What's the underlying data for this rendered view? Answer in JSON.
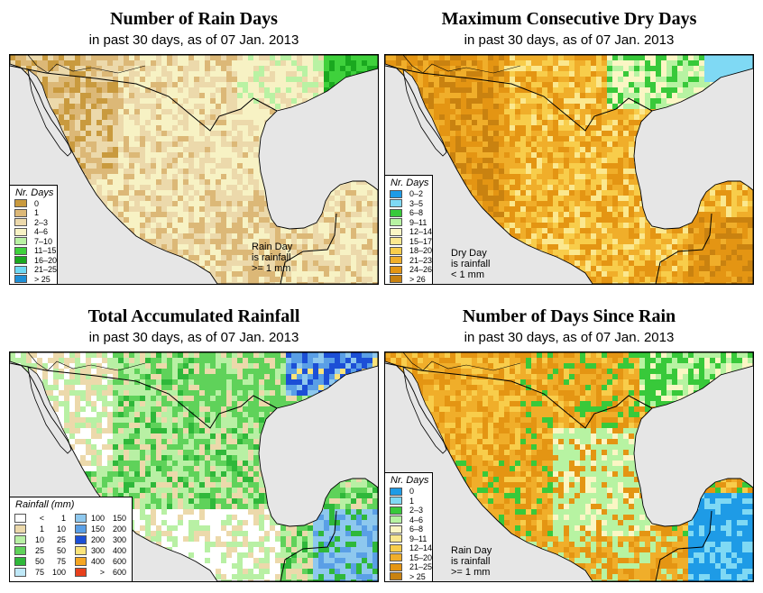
{
  "subtitle": "in past 30 days, as of  07 Jan. 2013",
  "panels": [
    {
      "title": "Number of Rain Days",
      "legend_title": "Nr. Days",
      "legend": [
        {
          "label": "0",
          "color": "#c99a3e"
        },
        {
          "label": "1",
          "color": "#dcb877"
        },
        {
          "label": "2–3",
          "color": "#ecd9ab"
        },
        {
          "label": "4–6",
          "color": "#f7f2c4"
        },
        {
          "label": "7–10",
          "color": "#b9f2a3"
        },
        {
          "label": "11–15",
          "color": "#3fd13c"
        },
        {
          "label": "16–20",
          "color": "#1aa81f"
        },
        {
          "label": "21–25",
          "color": "#6fd9f4"
        },
        {
          "label": "> 25",
          "color": "#1e8fd6"
        }
      ],
      "note": [
        "Rain Day",
        "is rainfall",
        ">= 1 mm"
      ]
    },
    {
      "title": "Maximum Consecutive Dry Days",
      "legend_title": "Nr. Days",
      "legend": [
        {
          "label": "0–2",
          "color": "#1e9be6"
        },
        {
          "label": "3–5",
          "color": "#7fd9f4"
        },
        {
          "label": "6–8",
          "color": "#38c93a"
        },
        {
          "label": "9–11",
          "color": "#b7f3a2"
        },
        {
          "label": "12–14",
          "color": "#fbf6c4"
        },
        {
          "label": "15–17",
          "color": "#fbe88f"
        },
        {
          "label": "18–20",
          "color": "#f8cd4b"
        },
        {
          "label": "21–23",
          "color": "#f0ae2a"
        },
        {
          "label": "24–26",
          "color": "#e49513"
        },
        {
          "label": "> 26",
          "color": "#c98210"
        }
      ],
      "note": [
        "Dry Day",
        "is rainfall",
        "< 1 mm"
      ]
    },
    {
      "title": "Total Accumulated Rainfall",
      "legend_title": "Rainfall (mm)",
      "rain_legend": [
        {
          "lo": "<",
          "hi": "1",
          "color": "#ffffff"
        },
        {
          "lo": "100",
          "hi": "150",
          "color": "#8ec8ee"
        },
        {
          "lo": "1",
          "hi": "10",
          "color": "#ecd9ab"
        },
        {
          "lo": "150",
          "hi": "200",
          "color": "#5a9fe6"
        },
        {
          "lo": "10",
          "hi": "25",
          "color": "#b8f0a4"
        },
        {
          "lo": "200",
          "hi": "300",
          "color": "#1c4fd6"
        },
        {
          "lo": "25",
          "hi": "50",
          "color": "#5fd25a"
        },
        {
          "lo": "300",
          "hi": "400",
          "color": "#fbe47a"
        },
        {
          "lo": "50",
          "hi": "75",
          "color": "#2fb83a"
        },
        {
          "lo": "400",
          "hi": "600",
          "color": "#f5a623"
        },
        {
          "lo": "75",
          "hi": "100",
          "color": "#bfe8f7"
        },
        {
          "lo": ">",
          "hi": "600",
          "color": "#e8401c"
        }
      ]
    },
    {
      "title": "Number of Days Since Rain",
      "legend_title": "Nr. Days",
      "legend": [
        {
          "label": "0",
          "color": "#1e9be6"
        },
        {
          "label": "1",
          "color": "#7fd9f4"
        },
        {
          "label": "2–3",
          "color": "#38c93a"
        },
        {
          "label": "4–6",
          "color": "#b7f3a2"
        },
        {
          "label": "6–8",
          "color": "#fbf6c4"
        },
        {
          "label": "9–11",
          "color": "#fbe88f"
        },
        {
          "label": "12–14",
          "color": "#f8cd4b"
        },
        {
          "label": "15–20",
          "color": "#f0ae2a"
        },
        {
          "label": "21–25",
          "color": "#e49513"
        },
        {
          "label": "> 25",
          "color": "#c98210"
        }
      ],
      "note": [
        "Rain Day",
        "is rainfall",
        ">= 1 mm"
      ]
    }
  ]
}
